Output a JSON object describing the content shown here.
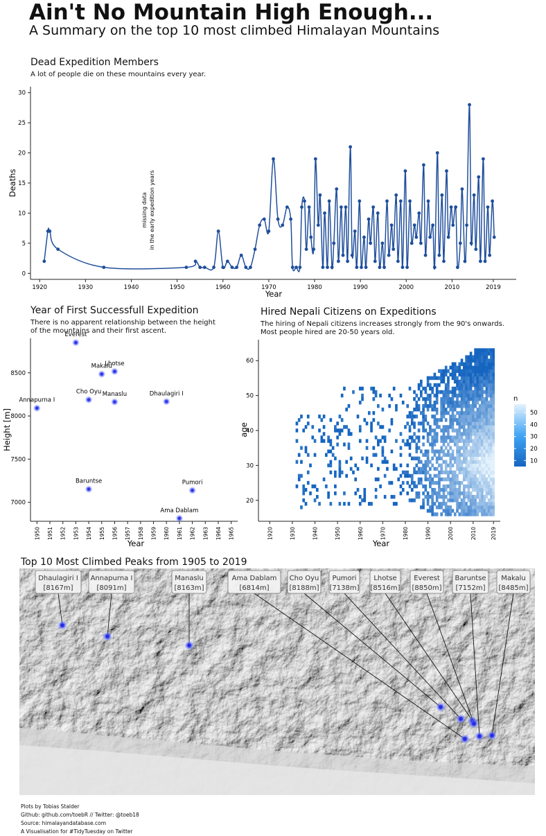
{
  "header": {
    "title": "Ain't No Mountain High Enough...",
    "subtitle": "A Summary on the top 10 most climbed Himalayan Mountains"
  },
  "deaths_panel": {
    "title": "Dead Expedition Members",
    "subtitle": "A lot of people die on these mountains every year.",
    "annotation_lines": [
      "missing data",
      "in the early expedition years"
    ]
  },
  "first_ascent_panel": {
    "title": "Year of First Successfull Expedition",
    "subtitle_lines": [
      "There is no apparent relationship between the height",
      "of the mountains and their first ascent."
    ]
  },
  "nepali_panel": {
    "title": "Hired Nepali Citizens on Expeditions",
    "subtitle_lines": [
      "The hiring of Nepali citizens increases strongly from the 90's onwards.",
      "Most people hired are 20-50 years old."
    ]
  },
  "map_panel": {
    "title": "Top 10 Most Climbed Peaks from 1905 to 2019",
    "peaks": [
      {
        "name": "Dhaulagiri I",
        "height": "[8167m]"
      },
      {
        "name": "Annapurna I",
        "height": "[8091m]"
      },
      {
        "name": "Manaslu",
        "height": "[8163m]"
      },
      {
        "name": "Ama Dablam",
        "height": "[6814m]"
      },
      {
        "name": "Cho Oyu",
        "height": "[8188m]"
      },
      {
        "name": "Pumori",
        "height": "[7138m]"
      },
      {
        "name": "Lhotse",
        "height": "[8516m]"
      },
      {
        "name": "Everest",
        "height": "[8850m]"
      },
      {
        "name": "Baruntse",
        "height": "[7152m]"
      },
      {
        "name": "Makalu",
        "height": "[8485m]"
      }
    ]
  },
  "footer": {
    "lines": [
      "Plots by Tobias Stalder",
      "Github: github.com/toebR // Twitter: @toeb18",
      "Source: himalayandatabase.com",
      "A Visualisation for #TidyTuesday on Twitter"
    ]
  },
  "colors": {
    "line": "#1f4e9c",
    "point": "#1f4e9c",
    "peak_dot": "#3344ee",
    "heat_low": "#1565c0",
    "heat_high": "#e3f2fd"
  },
  "chart_data": [
    {
      "type": "line",
      "xlabel": "Year",
      "ylabel": "Deaths",
      "xlim": [
        1918,
        2024
      ],
      "ylim": [
        -1,
        31
      ],
      "xticks": [
        1920,
        1930,
        1940,
        1950,
        1960,
        1970,
        1980,
        1990,
        2000,
        2010,
        2019
      ],
      "yticks": [
        0,
        5,
        10,
        15,
        20,
        25,
        30
      ],
      "smooth": true,
      "x": [
        1921,
        1922,
        1922,
        1924,
        1934,
        1952,
        1954,
        1955,
        1956,
        1958,
        1959,
        1960,
        1961,
        1962,
        1963,
        1964,
        1965,
        1966,
        1967,
        1968,
        1969,
        1970,
        1971,
        1972,
        1973,
        1974,
        1975,
        1975,
        1976,
        1977,
        1977,
        1978,
        1978,
        1979,
        1979,
        1980,
        1980,
        1981,
        1981,
        1982,
        1982,
        1983,
        1983,
        1984,
        1984,
        1985,
        1985,
        1986,
        1986,
        1987,
        1987,
        1988,
        1988,
        1989,
        1989,
        1990,
        1990,
        1991,
        1991,
        1992,
        1992,
        1993,
        1993,
        1994,
        1994,
        1995,
        1995,
        1996,
        1996,
        1997,
        1997,
        1998,
        1998,
        1999,
        1999,
        2000,
        2000,
        2001,
        2001,
        2002,
        2002,
        2003,
        2003,
        2004,
        2004,
        2005,
        2005,
        2006,
        2006,
        2007,
        2007,
        2008,
        2008,
        2009,
        2009,
        2010,
        2010,
        2011,
        2011,
        2012,
        2012,
        2013,
        2013,
        2014,
        2014,
        2015,
        2015,
        2016,
        2016,
        2017,
        2017,
        2018,
        2018,
        2019,
        2019
      ],
      "values": [
        2,
        7,
        7,
        4,
        1,
        1,
        2,
        1,
        1,
        1,
        7,
        1,
        2,
        1,
        1,
        3,
        1,
        1,
        4,
        8,
        9,
        7,
        19,
        9,
        8,
        11,
        9,
        1,
        1,
        1,
        11,
        12,
        4,
        11,
        6,
        4,
        19,
        8,
        13,
        1,
        10,
        1,
        12,
        1,
        5,
        14,
        2,
        11,
        3,
        11,
        2,
        21,
        3,
        7,
        1,
        12,
        1,
        6,
        1,
        9,
        5,
        11,
        2,
        10,
        1,
        5,
        1,
        12,
        3,
        8,
        4,
        13,
        2,
        12,
        1,
        17,
        1,
        12,
        5,
        8,
        6,
        10,
        5,
        18,
        3,
        12,
        6,
        8,
        1,
        20,
        3,
        13,
        2,
        17,
        6,
        11,
        8,
        11,
        1,
        5,
        14,
        2,
        8,
        28,
        5,
        13,
        4,
        16,
        2,
        19,
        2,
        11,
        3,
        12,
        6
      ]
    },
    {
      "type": "scatter",
      "xlabel": "Year",
      "ylabel": "Height [m]",
      "xlim": [
        1949.5,
        1965.5
      ],
      "ylim": [
        6780,
        8900
      ],
      "xticks": [
        1950,
        1951,
        1952,
        1953,
        1954,
        1955,
        1956,
        1957,
        1958,
        1959,
        1960,
        1961,
        1962,
        1963,
        1964,
        1965
      ],
      "yticks": [
        7000,
        7500,
        8000,
        8500
      ],
      "points": [
        {
          "label": "Everest",
          "x": 1953,
          "y": 8850
        },
        {
          "label": "Makalu",
          "x": 1955,
          "y": 8485
        },
        {
          "label": "Lhotse",
          "x": 1956,
          "y": 8516
        },
        {
          "label": "Cho Oyu",
          "x": 1954,
          "y": 8188
        },
        {
          "label": "Manaslu",
          "x": 1956,
          "y": 8163
        },
        {
          "label": "Dhaulagiri I",
          "x": 1960,
          "y": 8167
        },
        {
          "label": "Annapurna I",
          "x": 1950,
          "y": 8091
        },
        {
          "label": "Baruntse",
          "x": 1954,
          "y": 7152
        },
        {
          "label": "Pumori",
          "x": 1962,
          "y": 7138
        },
        {
          "label": "Ama Dablam",
          "x": 1961,
          "y": 6814
        }
      ]
    },
    {
      "type": "heatmap",
      "xlabel": "Year",
      "ylabel": "age",
      "xlim": [
        1915,
        2022
      ],
      "ylim": [
        14,
        66
      ],
      "xticks": [
        1920,
        1930,
        1940,
        1950,
        1960,
        1970,
        1980,
        1990,
        2000,
        2010,
        2019
      ],
      "yticks": [
        20,
        30,
        40,
        50,
        60
      ],
      "legend": {
        "title": "n",
        "values": [
          50,
          40,
          30,
          20,
          10
        ],
        "placement": "right"
      }
    }
  ]
}
